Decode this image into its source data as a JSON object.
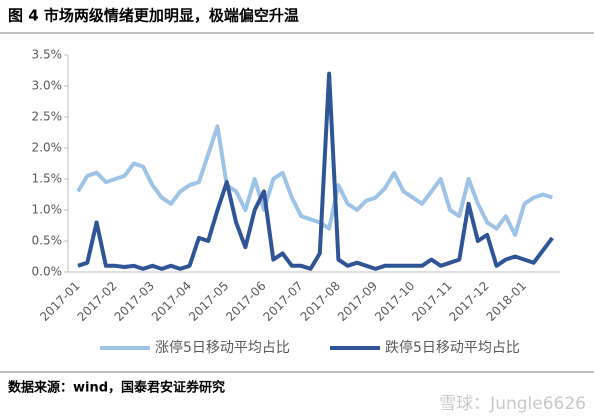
{
  "chart_data": {
    "type": "line",
    "title": "图 4 市场两级情绪更加明显，极端偏空升温",
    "source": "数据来源：wind，国泰君安证券研究",
    "watermark": "雪球：Jungle6626",
    "categories": [
      "2017-01",
      null,
      null,
      null,
      "2017-02",
      null,
      null,
      null,
      "2017-03",
      null,
      null,
      null,
      "2017-04",
      null,
      null,
      null,
      "2017-05",
      null,
      null,
      null,
      "2017-06",
      null,
      null,
      null,
      "2017-07",
      null,
      null,
      null,
      "2017-08",
      null,
      null,
      null,
      "2017-09",
      null,
      null,
      null,
      "2017-10",
      null,
      null,
      null,
      "2017-11",
      null,
      null,
      null,
      "2017-12",
      null,
      null,
      null,
      "2018-01",
      null,
      null,
      null
    ],
    "series": [
      {
        "name": "涨停5日移动平均占比",
        "color": "#9dc3e6",
        "values": [
          1.3,
          1.55,
          1.6,
          1.45,
          1.5,
          1.55,
          1.75,
          1.7,
          1.4,
          1.2,
          1.1,
          1.3,
          1.4,
          1.45,
          1.9,
          2.35,
          1.4,
          1.3,
          1.0,
          1.5,
          1.0,
          1.5,
          1.6,
          1.2,
          0.9,
          0.85,
          0.8,
          0.7,
          1.4,
          1.1,
          1.0,
          1.15,
          1.2,
          1.35,
          1.6,
          1.3,
          1.2,
          1.1,
          1.3,
          1.5,
          1.0,
          0.9,
          1.5,
          1.1,
          0.8,
          0.7,
          0.9,
          0.6,
          1.1,
          1.2,
          1.25,
          1.2
        ]
      },
      {
        "name": "跌停5日移动平均占比",
        "color": "#2f5597",
        "values": [
          0.1,
          0.15,
          0.8,
          0.1,
          0.1,
          0.08,
          0.1,
          0.05,
          0.1,
          0.05,
          0.1,
          0.05,
          0.1,
          0.55,
          0.5,
          1.0,
          1.45,
          0.8,
          0.4,
          1.0,
          1.3,
          0.2,
          0.3,
          0.1,
          0.1,
          0.05,
          0.3,
          3.2,
          0.2,
          0.1,
          0.15,
          0.1,
          0.05,
          0.1,
          0.1,
          0.1,
          0.1,
          0.1,
          0.2,
          0.1,
          0.15,
          0.2,
          1.1,
          0.5,
          0.6,
          0.1,
          0.2,
          0.25,
          0.2,
          0.15,
          0.35,
          0.55
        ]
      }
    ],
    "ylim": [
      0,
      3.5
    ],
    "yticks": [
      {
        "value": 0,
        "label": "0.0%"
      },
      {
        "value": 0.5,
        "label": "0.5%"
      },
      {
        "value": 1,
        "label": "1.0%"
      },
      {
        "value": 1.5,
        "label": "1.5%"
      },
      {
        "value": 2,
        "label": "2.0%"
      },
      {
        "value": 2.5,
        "label": "2.5%"
      },
      {
        "value": 3,
        "label": "3.0%"
      },
      {
        "value": 3.5,
        "label": "3.5%"
      }
    ],
    "legend": "bottom"
  }
}
